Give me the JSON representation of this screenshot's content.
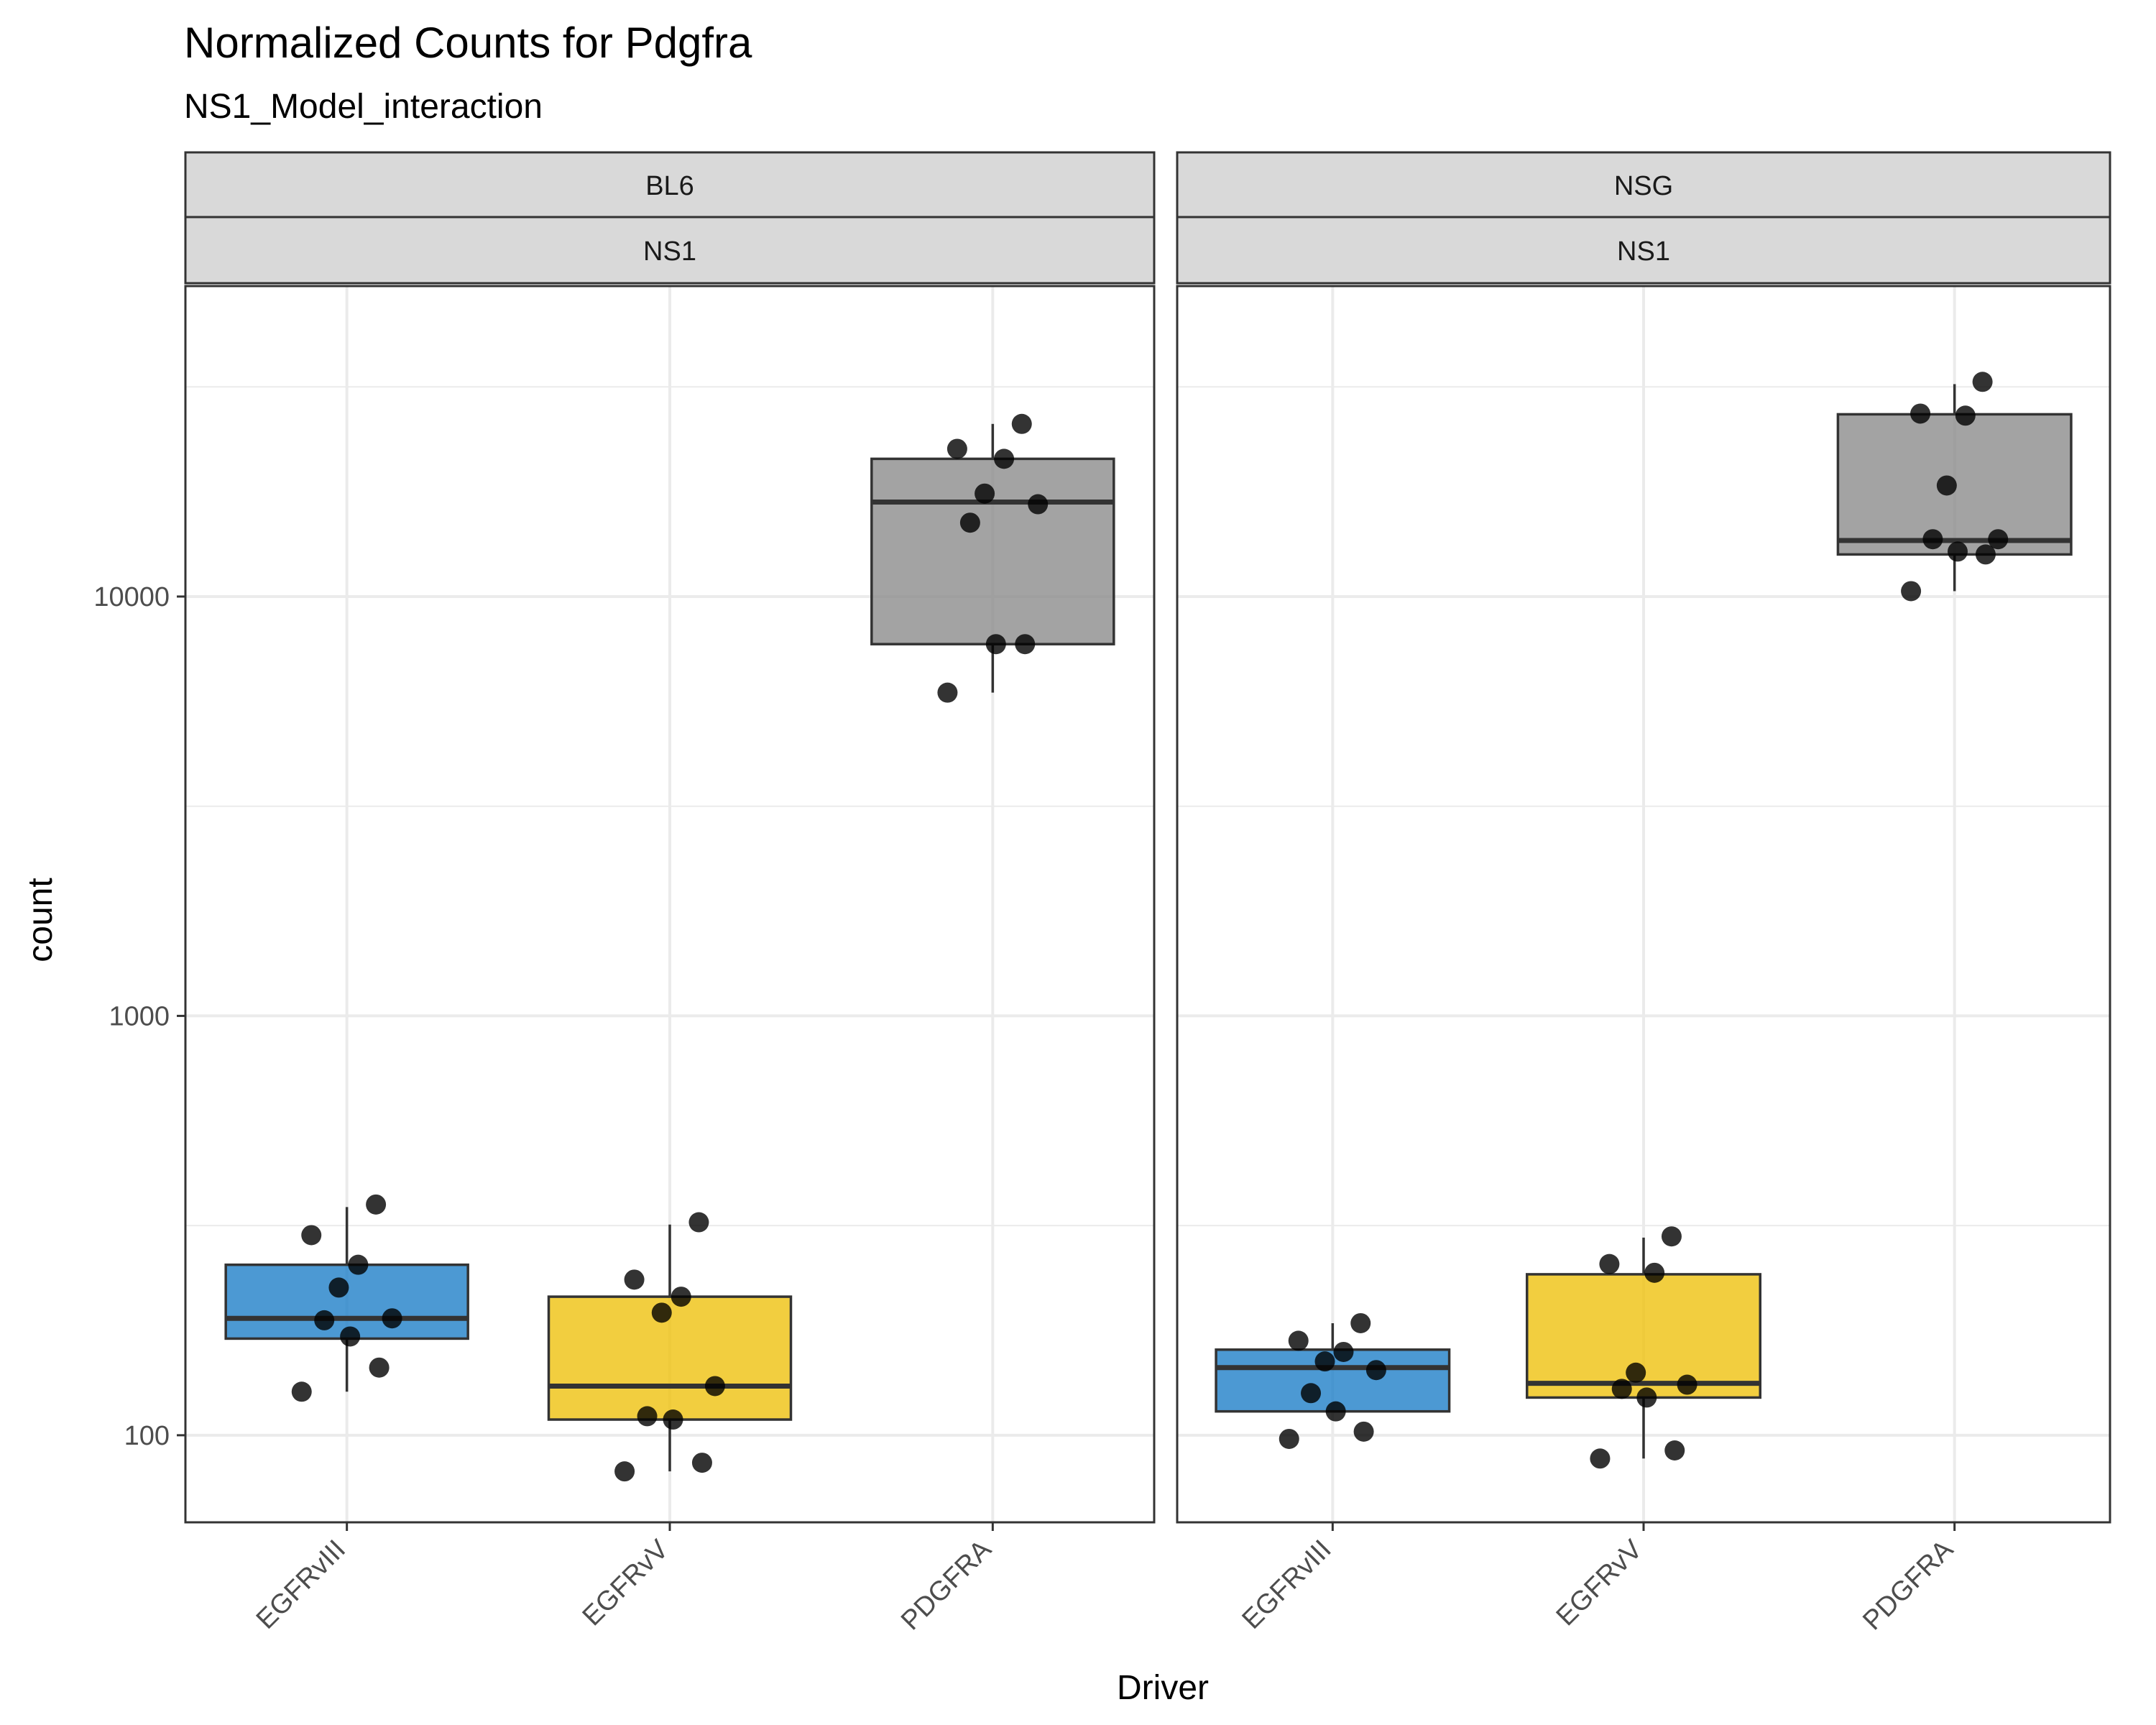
{
  "chart_data": {
    "type": "box",
    "title": "Normalized Counts for Pdgfra",
    "subtitle": "NS1_Model_interaction",
    "xlabel": "Driver",
    "ylabel": "count",
    "y_scale": "log10",
    "ylim": [
      62,
      55000
    ],
    "y_ticks": [
      100,
      1000,
      10000
    ],
    "y_tick_labels": [
      "100",
      "1000",
      "10000"
    ],
    "grid": true,
    "categories": [
      "EGFRvIII",
      "EGFRvV",
      "PDGFRA"
    ],
    "colors": {
      "EGFRvIII": "#1f7fc8",
      "EGFRvV": "#efc20f",
      "PDGFRA": "#8c8c8c"
    },
    "panels": [
      {
        "strip_top": "BL6",
        "strip_bottom": "NS1",
        "boxes": [
          {
            "category": "EGFRvIII",
            "q1": 170,
            "median": 190,
            "q3": 255,
            "whisker_low": 127,
            "whisker_high": 350,
            "points": [
              355,
              300,
              255,
              225,
              190,
              188,
              172,
              145,
              127
            ]
          },
          {
            "category": "EGFRvV",
            "q1": 109,
            "median": 131,
            "q3": 214,
            "whisker_low": 82,
            "whisker_high": 318,
            "points": [
              322,
              235,
              214,
              196,
              131,
              111,
              109,
              86,
              82
            ]
          },
          {
            "category": "PDGFRA",
            "q1": 7700,
            "median": 16800,
            "q3": 21300,
            "whisker_low": 5900,
            "whisker_high": 25800,
            "points": [
              25800,
              22500,
              21300,
              17600,
              16600,
              15000,
              7700,
              7700,
              5900
            ]
          }
        ]
      },
      {
        "strip_top": "NSG",
        "strip_bottom": "NS1",
        "boxes": [
          {
            "category": "EGFRvIII",
            "q1": 114,
            "median": 145,
            "q3": 160,
            "whisker_low": 114,
            "whisker_high": 185,
            "points": [
              185,
              168,
              158,
              150,
              143,
              126,
              114,
              102,
              98
            ]
          },
          {
            "category": "EGFRvV",
            "q1": 123,
            "median": 133,
            "q3": 242,
            "whisker_low": 88,
            "whisker_high": 296,
            "points": [
              298,
              256,
              244,
              141,
              132,
              129,
              123,
              92,
              88
            ]
          },
          {
            "category": "PDGFRA",
            "q1": 12600,
            "median": 13600,
            "q3": 27200,
            "whisker_low": 10300,
            "whisker_high": 32100,
            "points": [
              32500,
              27300,
              27000,
              18400,
              13700,
              13700,
              12800,
              12600,
              10300
            ]
          }
        ]
      }
    ]
  }
}
